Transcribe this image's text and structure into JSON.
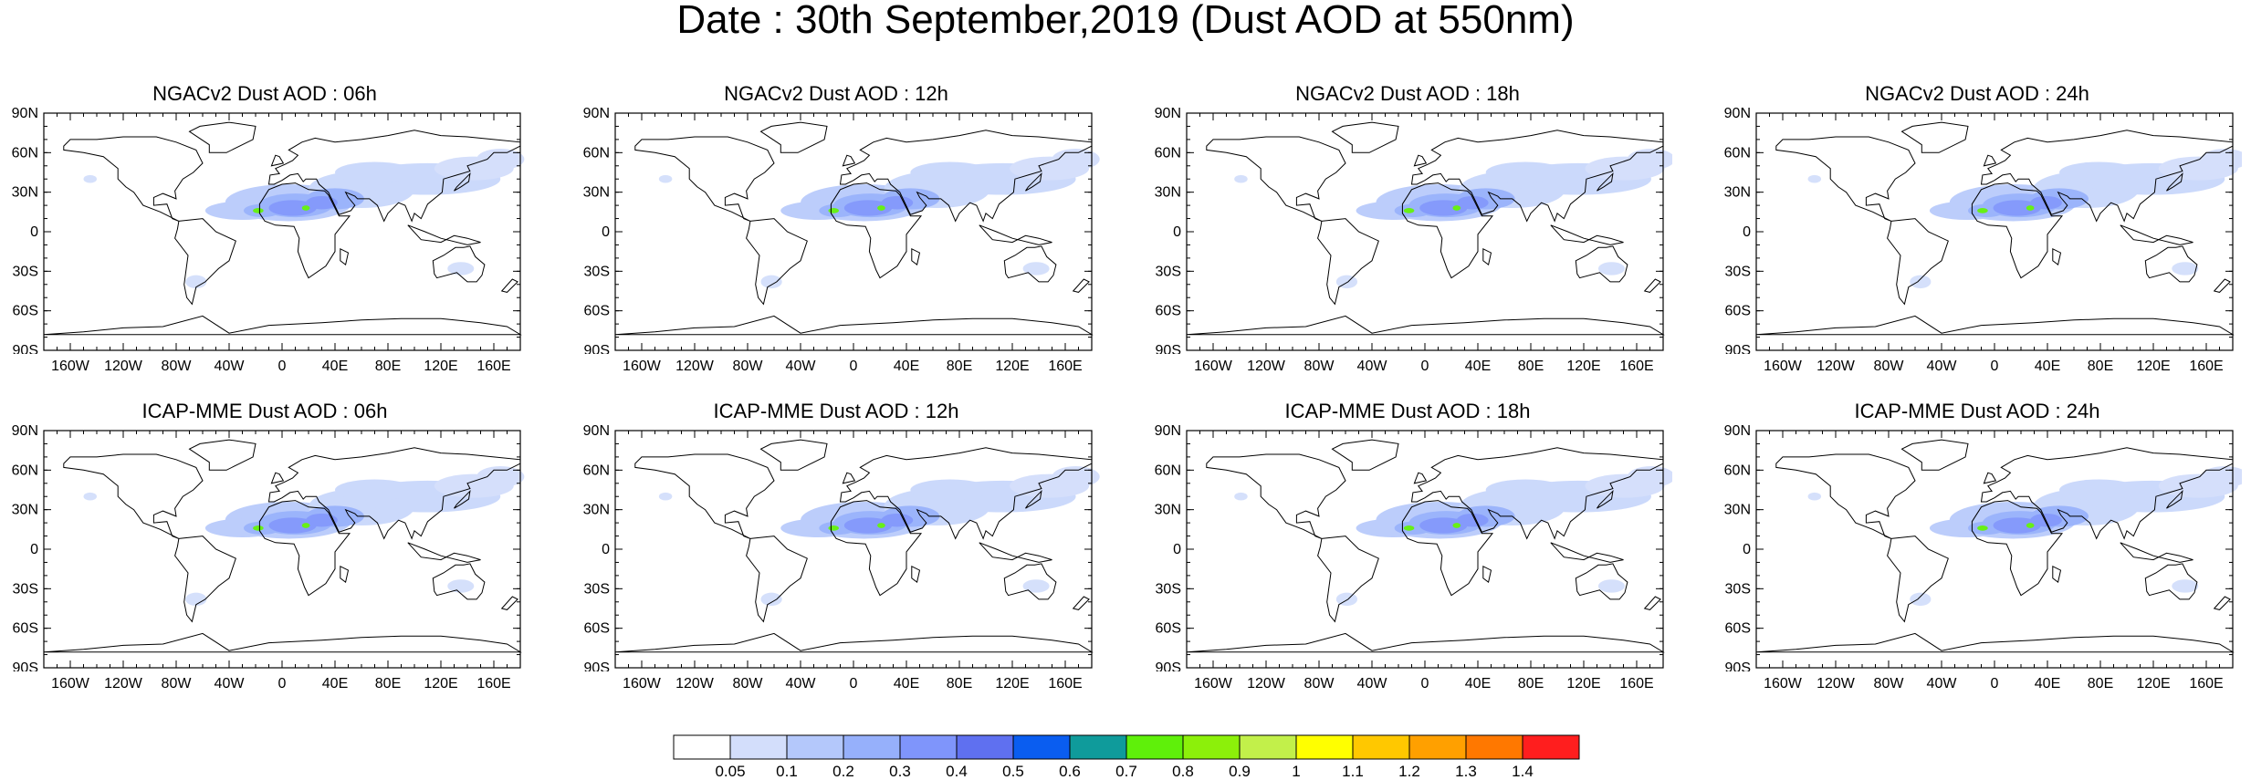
{
  "title": "Date : 30th September,2019 (Dust AOD at 550nm)",
  "panels": [
    {
      "title": "NGACv2 Dust AOD : 06h"
    },
    {
      "title": "NGACv2 Dust AOD : 12h"
    },
    {
      "title": "NGACv2 Dust AOD : 18h"
    },
    {
      "title": "NGACv2 Dust AOD : 24h"
    },
    {
      "title": "ICAP-MME Dust AOD : 06h"
    },
    {
      "title": "ICAP-MME Dust AOD : 12h"
    },
    {
      "title": "ICAP-MME Dust AOD : 18h"
    },
    {
      "title": "ICAP-MME Dust AOD : 24h"
    }
  ],
  "lat_ticks": [
    "90N",
    "60N",
    "30N",
    "0",
    "30S",
    "60S",
    "90S"
  ],
  "lon_ticks": [
    "160W",
    "120W",
    "80W",
    "40W",
    "0",
    "40E",
    "80E",
    "120E",
    "160E"
  ],
  "colorbar": {
    "levels": [
      "0.05",
      "0.1",
      "0.2",
      "0.3",
      "0.4",
      "0.5",
      "0.6",
      "0.7",
      "0.8",
      "0.9",
      "1",
      "1.1",
      "1.2",
      "1.3",
      "1.4"
    ],
    "colors": [
      "#ffffff",
      "#d3defb",
      "#b4c8fb",
      "#96b0fb",
      "#7f95fb",
      "#5f70f0",
      "#0a5df0",
      "#0f9b9b",
      "#5ff00a",
      "#8cf00a",
      "#c2f04a",
      "#ffff00",
      "#ffc800",
      "#ffa000",
      "#ff7800",
      "#ff1e1e"
    ]
  }
}
